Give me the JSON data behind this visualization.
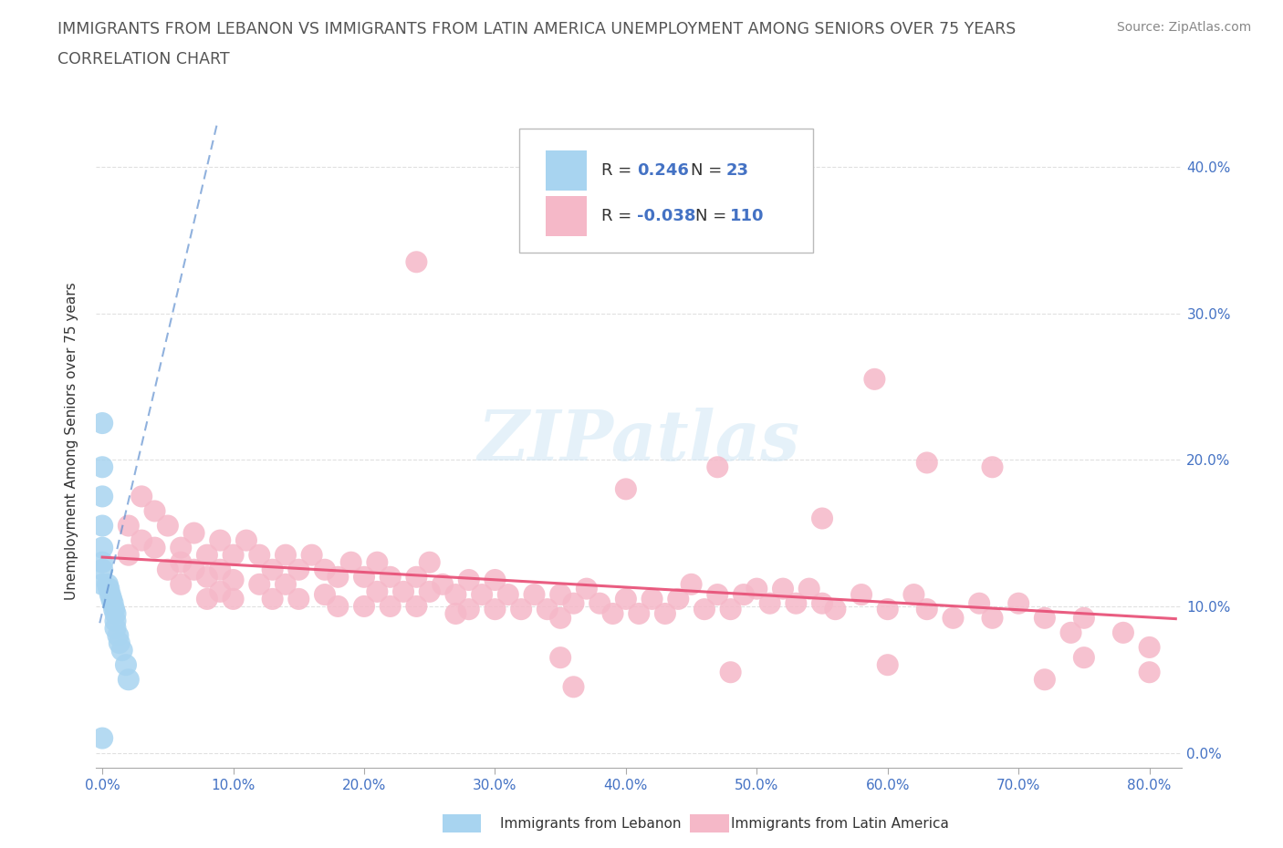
{
  "title_line1": "IMMIGRANTS FROM LEBANON VS IMMIGRANTS FROM LATIN AMERICA UNEMPLOYMENT AMONG SENIORS OVER 75 YEARS",
  "title_line2": "CORRELATION CHART",
  "source": "Source: ZipAtlas.com",
  "ylabel": "Unemployment Among Seniors over 75 years",
  "xlim": [
    -0.005,
    0.825
  ],
  "ylim": [
    -0.01,
    0.435
  ],
  "x_ticks": [
    0.0,
    0.1,
    0.2,
    0.3,
    0.4,
    0.5,
    0.6,
    0.7,
    0.8
  ],
  "y_ticks": [
    0.0,
    0.1,
    0.2,
    0.3,
    0.4
  ],
  "x_tick_labels": [
    "0.0%",
    "10.0%",
    "20.0%",
    "30.0%",
    "40.0%",
    "50.0%",
    "60.0%",
    "70.0%",
    "80.0%"
  ],
  "y_tick_labels_right": [
    "0.0%",
    "10.0%",
    "20.0%",
    "30.0%",
    "40.0%"
  ],
  "lebanon_color": "#a8d4f0",
  "latin_color": "#f5b8c8",
  "lebanon_line_color": "#5588cc",
  "latin_line_color": "#e8547a",
  "watermark": "ZIPatlas",
  "background_color": "#ffffff",
  "grid_color": "#dddddd",
  "title_color": "#555555",
  "tick_color": "#4472C4",
  "legend_box_color": "#aaaaaa",
  "leb_x": [
    0.0,
    0.0,
    0.0,
    0.0,
    0.0,
    0.0,
    0.0,
    0.0,
    0.004,
    0.005,
    0.006,
    0.007,
    0.008,
    0.009,
    0.01,
    0.01,
    0.01,
    0.012,
    0.013,
    0.015,
    0.018,
    0.02,
    0.0
  ],
  "leb_y": [
    0.225,
    0.195,
    0.175,
    0.155,
    0.14,
    0.13,
    0.125,
    0.115,
    0.115,
    0.112,
    0.108,
    0.105,
    0.102,
    0.098,
    0.095,
    0.09,
    0.085,
    0.08,
    0.075,
    0.07,
    0.06,
    0.05,
    0.01
  ],
  "lat_x": [
    0.02,
    0.02,
    0.03,
    0.03,
    0.04,
    0.04,
    0.05,
    0.05,
    0.06,
    0.06,
    0.06,
    0.07,
    0.07,
    0.08,
    0.08,
    0.08,
    0.09,
    0.09,
    0.09,
    0.1,
    0.1,
    0.1,
    0.11,
    0.12,
    0.12,
    0.13,
    0.13,
    0.14,
    0.14,
    0.15,
    0.15,
    0.16,
    0.17,
    0.17,
    0.18,
    0.18,
    0.19,
    0.2,
    0.2,
    0.21,
    0.21,
    0.22,
    0.22,
    0.23,
    0.24,
    0.24,
    0.25,
    0.25,
    0.26,
    0.27,
    0.27,
    0.28,
    0.28,
    0.29,
    0.3,
    0.3,
    0.31,
    0.32,
    0.33,
    0.34,
    0.35,
    0.35,
    0.36,
    0.37,
    0.38,
    0.39,
    0.4,
    0.41,
    0.42,
    0.43,
    0.44,
    0.45,
    0.46,
    0.47,
    0.48,
    0.49,
    0.5,
    0.51,
    0.52,
    0.53,
    0.54,
    0.55,
    0.56,
    0.58,
    0.6,
    0.62,
    0.63,
    0.65,
    0.67,
    0.68,
    0.7,
    0.72,
    0.74,
    0.75,
    0.78,
    0.8,
    0.24,
    0.59,
    0.47,
    0.63,
    0.4,
    0.55,
    0.68,
    0.75,
    0.8,
    0.35,
    0.48,
    0.6,
    0.72,
    0.36
  ],
  "lat_y": [
    0.155,
    0.135,
    0.175,
    0.145,
    0.165,
    0.14,
    0.155,
    0.125,
    0.14,
    0.13,
    0.115,
    0.15,
    0.125,
    0.135,
    0.12,
    0.105,
    0.145,
    0.125,
    0.11,
    0.135,
    0.118,
    0.105,
    0.145,
    0.135,
    0.115,
    0.125,
    0.105,
    0.135,
    0.115,
    0.125,
    0.105,
    0.135,
    0.125,
    0.108,
    0.12,
    0.1,
    0.13,
    0.12,
    0.1,
    0.13,
    0.11,
    0.12,
    0.1,
    0.11,
    0.12,
    0.1,
    0.13,
    0.11,
    0.115,
    0.108,
    0.095,
    0.118,
    0.098,
    0.108,
    0.118,
    0.098,
    0.108,
    0.098,
    0.108,
    0.098,
    0.108,
    0.092,
    0.102,
    0.112,
    0.102,
    0.095,
    0.105,
    0.095,
    0.105,
    0.095,
    0.105,
    0.115,
    0.098,
    0.108,
    0.098,
    0.108,
    0.112,
    0.102,
    0.112,
    0.102,
    0.112,
    0.102,
    0.098,
    0.108,
    0.098,
    0.108,
    0.098,
    0.092,
    0.102,
    0.092,
    0.102,
    0.092,
    0.082,
    0.092,
    0.082,
    0.072,
    0.335,
    0.255,
    0.195,
    0.198,
    0.18,
    0.16,
    0.195,
    0.065,
    0.055,
    0.065,
    0.055,
    0.06,
    0.05,
    0.045
  ]
}
